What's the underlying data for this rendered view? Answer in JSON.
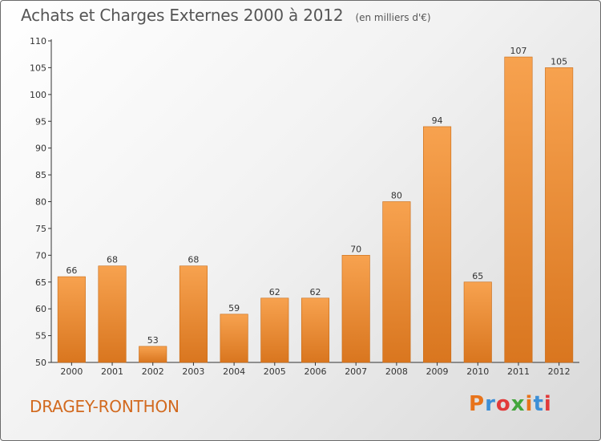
{
  "header": {
    "title": "Achats et Charges Externes 2000 à 2012",
    "unit": "(en milliers d'€)"
  },
  "footer": {
    "commune": "DRAGEY-RONTHON",
    "brand": "Proxiti",
    "brand_colors": [
      "#e8731a",
      "#3d8fd6",
      "#e23a3a",
      "#43a63b",
      "#e8731a",
      "#3d8fd6",
      "#e23a3a"
    ]
  },
  "colors": {
    "bar_light": "#f7a24f",
    "bar_dark": "#d9761f",
    "bar_edge": "#c86a15",
    "axis": "#333333",
    "grid": "#cfcfcf",
    "commune": "#d2691e"
  },
  "chart_data": {
    "type": "bar",
    "title": "Achats et Charges Externes 2000 à 2012",
    "categories": [
      "2000",
      "2001",
      "2002",
      "2003",
      "2004",
      "2005",
      "2006",
      "2007",
      "2008",
      "2009",
      "2010",
      "2011",
      "2012"
    ],
    "values": [
      66,
      68,
      53,
      68,
      59,
      62,
      62,
      70,
      80,
      94,
      65,
      107,
      105
    ],
    "ylim": [
      50,
      110
    ],
    "yticks": [
      50,
      55,
      60,
      65,
      70,
      75,
      80,
      85,
      90,
      95,
      100,
      105,
      110
    ],
    "grid": false,
    "legend": "none"
  }
}
